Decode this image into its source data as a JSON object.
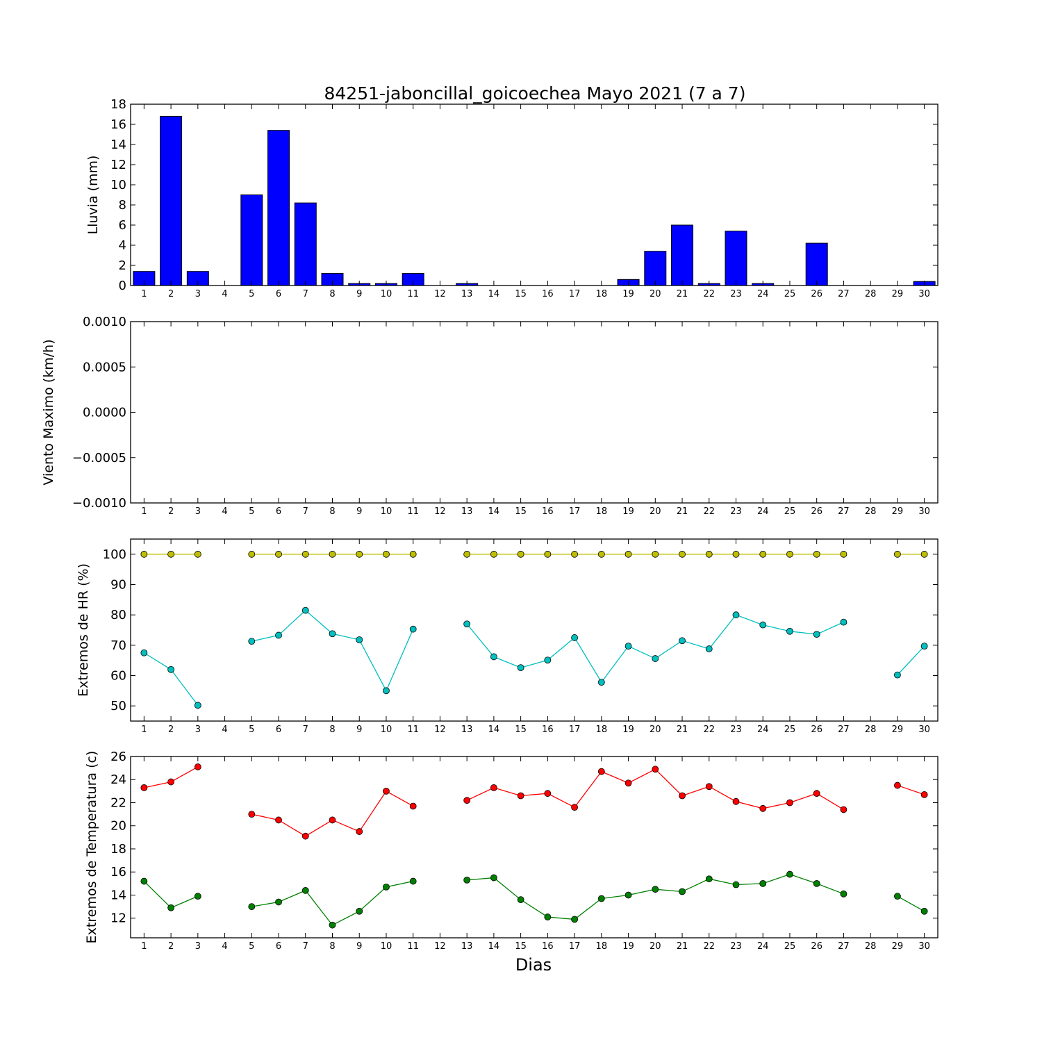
{
  "title": "84251-jaboncillal_goicoechea Mayo 2021  (7 a 7)",
  "xlabel": "Dias",
  "colors": {
    "rain_bar": "#0000ff",
    "hr_max": "#bfbf00",
    "hr_min": "#00bfbf",
    "temp_max": "#ff0000",
    "temp_min": "#008000"
  },
  "chart_data": [
    {
      "type": "bar",
      "ylabel": "Lluvia (mm)",
      "ylim": [
        0,
        18
      ],
      "yticks": [
        "0",
        "2",
        "4",
        "6",
        "8",
        "10",
        "12",
        "14",
        "16",
        "18"
      ],
      "x": [
        1,
        2,
        3,
        4,
        5,
        6,
        7,
        8,
        9,
        10,
        11,
        12,
        13,
        14,
        15,
        16,
        17,
        18,
        19,
        20,
        21,
        22,
        23,
        24,
        25,
        26,
        27,
        28,
        29,
        30
      ],
      "values": [
        1.4,
        16.8,
        1.4,
        0,
        9.0,
        15.4,
        8.2,
        1.2,
        0.2,
        0.2,
        1.2,
        0,
        0.2,
        0,
        0,
        0,
        0,
        0,
        0.6,
        3.4,
        6.0,
        0.2,
        5.4,
        0.2,
        0,
        4.2,
        0,
        0,
        0,
        0.4
      ]
    },
    {
      "type": "line",
      "ylabel": "Viento Maximo (km/h)",
      "ylim": [
        -0.001,
        0.001
      ],
      "yticks": [
        "0.0010",
        "0.0005",
        "0.0000",
        "−0.0005",
        "−0.0010"
      ],
      "x": [
        1,
        2,
        3,
        4,
        5,
        6,
        7,
        8,
        9,
        10,
        11,
        12,
        13,
        14,
        15,
        16,
        17,
        18,
        19,
        20,
        21,
        22,
        23,
        24,
        25,
        26,
        27,
        28,
        29,
        30
      ],
      "series": []
    },
    {
      "type": "line",
      "ylabel": "Extremos de HR (%)",
      "ylim": [
        45,
        105
      ],
      "yticks": [
        "50",
        "60",
        "70",
        "80",
        "90",
        "100"
      ],
      "x": [
        1,
        2,
        3,
        4,
        5,
        6,
        7,
        8,
        9,
        10,
        11,
        12,
        13,
        14,
        15,
        16,
        17,
        18,
        19,
        20,
        21,
        22,
        23,
        24,
        25,
        26,
        27,
        28,
        29,
        30
      ],
      "series": [
        {
          "color_key": "hr_max",
          "values": [
            100,
            100,
            100,
            null,
            100,
            100,
            100,
            100,
            100,
            100,
            100,
            null,
            100,
            100,
            100,
            100,
            100,
            100,
            100,
            100,
            100,
            100,
            100,
            100,
            100,
            100,
            100,
            null,
            100,
            100
          ]
        },
        {
          "color_key": "hr_min",
          "values": [
            67.5,
            62,
            50.2,
            null,
            71.3,
            73.3,
            81.5,
            73.8,
            71.8,
            55,
            75.3,
            null,
            77,
            66.2,
            62.6,
            65.1,
            72.5,
            57.8,
            69.7,
            65.6,
            71.5,
            68.8,
            80,
            76.7,
            74.6,
            73.6,
            77.6,
            null,
            60.2,
            69.7
          ]
        }
      ]
    },
    {
      "type": "line",
      "ylabel": "Extremos de Temperatura (c)",
      "ylim": [
        10.3,
        26
      ],
      "yticks": [
        "12",
        "14",
        "16",
        "18",
        "20",
        "22",
        "24",
        "26"
      ],
      "x": [
        1,
        2,
        3,
        4,
        5,
        6,
        7,
        8,
        9,
        10,
        11,
        12,
        13,
        14,
        15,
        16,
        17,
        18,
        19,
        20,
        21,
        22,
        23,
        24,
        25,
        26,
        27,
        28,
        29,
        30
      ],
      "series": [
        {
          "color_key": "temp_max",
          "values": [
            23.3,
            23.8,
            25.1,
            null,
            21,
            20.5,
            19.1,
            20.5,
            19.5,
            23,
            21.7,
            null,
            22.2,
            23.3,
            22.6,
            22.8,
            21.6,
            24.7,
            23.7,
            24.9,
            22.6,
            23.4,
            22.1,
            21.5,
            22,
            22.8,
            21.4,
            null,
            23.5,
            22.7
          ]
        },
        {
          "color_key": "temp_min",
          "values": [
            15.2,
            12.9,
            13.9,
            null,
            13,
            13.4,
            14.4,
            11.4,
            12.6,
            14.7,
            15.2,
            null,
            15.3,
            15.5,
            13.6,
            12.1,
            11.9,
            13.7,
            14,
            14.5,
            14.3,
            15.4,
            14.9,
            15,
            15.8,
            15,
            14.1,
            null,
            13.9,
            12.6
          ]
        }
      ]
    }
  ]
}
